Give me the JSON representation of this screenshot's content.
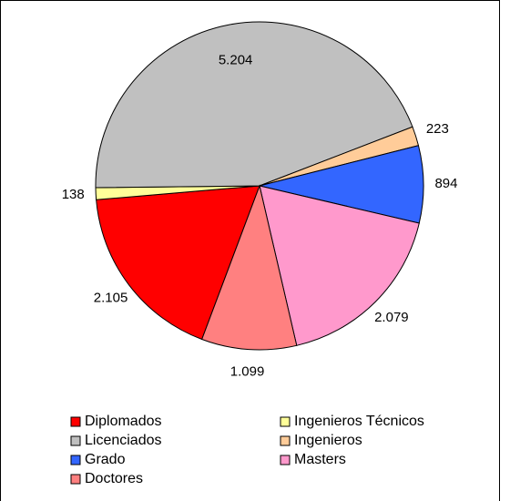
{
  "chart_data": {
    "type": "pie",
    "categories": [
      "Diplomados",
      "Ingenieros Técnicos",
      "Licenciados",
      "Ingenieros",
      "Grado",
      "Masters",
      "Doctores"
    ],
    "values": [
      2105,
      138,
      5204,
      223,
      894,
      2079,
      1099
    ],
    "value_labels": [
      "2.105",
      "138",
      "5.204",
      "223",
      "894",
      "2.079",
      "1.099"
    ],
    "colors": [
      "#ff0000",
      "#ffff99",
      "#c0c0c0",
      "#ffcc99",
      "#3366ff",
      "#ff99cc",
      "#ff8080"
    ]
  }
}
